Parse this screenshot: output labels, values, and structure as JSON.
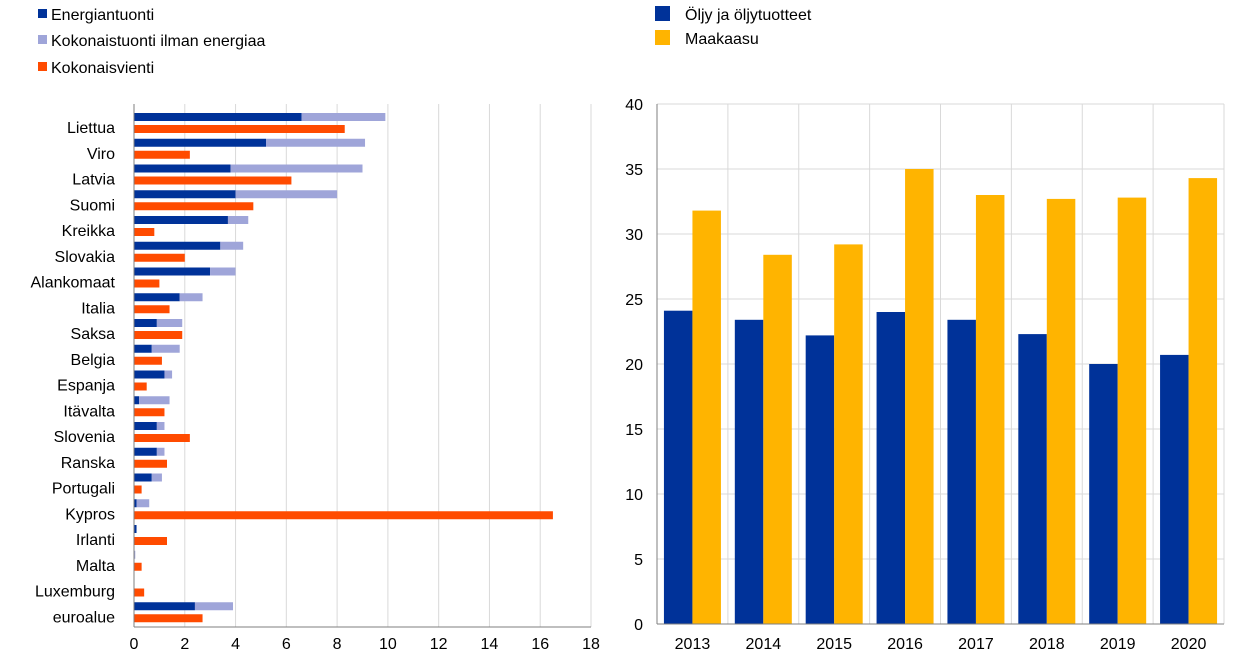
{
  "colors": {
    "energy_imports": "#003299",
    "non_energy_imports": "#9FA5D9",
    "exports": "#FF4B00",
    "oil": "#003299",
    "gas": "#FFB400",
    "grid": "#D9D9D9",
    "axis": "#7F7F7F"
  },
  "chart_data": [
    {
      "type": "bar",
      "orientation": "horizontal",
      "stacked_series": [
        "Energiantuonti",
        "Kokonaistuonti ilman energiaa"
      ],
      "categories": [
        "Liettua",
        "Viro",
        "Latvia",
        "Suomi",
        "Kreikka",
        "Slovakia",
        "Alankomaat",
        "Italia",
        "Saksa",
        "Belgia",
        "Espanja",
        "Itävalta",
        "Slovenia",
        "Ranska",
        "Portugali",
        "Kypros",
        "Irlanti",
        "Malta",
        "Luxemburg",
        "euroalue"
      ],
      "series": [
        {
          "name": "Energiantuonti",
          "color_key": "energy_imports",
          "values": [
            6.6,
            5.2,
            3.8,
            4.0,
            3.7,
            3.4,
            3.0,
            1.8,
            0.9,
            0.7,
            1.2,
            0.2,
            0.9,
            0.9,
            0.7,
            0.1,
            0.1,
            0.0,
            0.0,
            2.4
          ]
        },
        {
          "name": "Kokonaistuonti ilman energiaa",
          "color_key": "non_energy_imports",
          "values": [
            3.3,
            3.9,
            5.2,
            4.0,
            0.8,
            0.9,
            1.0,
            0.9,
            1.0,
            1.1,
            0.3,
            1.2,
            0.3,
            0.3,
            0.4,
            0.5,
            0.0,
            0.05,
            0.0,
            1.5
          ]
        },
        {
          "name": "Kokonaisvienti",
          "color_key": "exports",
          "values": [
            8.3,
            2.2,
            6.2,
            4.7,
            0.8,
            2.0,
            1.0,
            1.4,
            1.9,
            1.1,
            0.5,
            1.2,
            2.2,
            1.3,
            0.3,
            16.5,
            1.3,
            0.3,
            0.4,
            2.7
          ]
        }
      ],
      "xlim": [
        0,
        18
      ],
      "xticks": [
        0,
        2,
        4,
        6,
        8,
        10,
        12,
        14,
        16,
        18
      ],
      "grid": "vertical",
      "legend_position": "top-left"
    },
    {
      "type": "bar",
      "categories": [
        "2013",
        "2014",
        "2015",
        "2016",
        "2017",
        "2018",
        "2019",
        "2020"
      ],
      "series": [
        {
          "name": "Öljy ja öljytuotteet",
          "color_key": "oil",
          "values": [
            24.1,
            23.4,
            22.2,
            24.0,
            23.4,
            22.3,
            20.0,
            20.7
          ]
        },
        {
          "name": "Maakaasu",
          "color_key": "gas",
          "values": [
            31.8,
            28.4,
            29.2,
            35.0,
            33.0,
            32.7,
            32.8,
            34.3
          ]
        }
      ],
      "ylim": [
        0,
        40
      ],
      "yticks": [
        0,
        5,
        10,
        15,
        20,
        25,
        30,
        35,
        40
      ],
      "grid": "horizontal-and-vertical",
      "legend_position": "top-left"
    }
  ]
}
